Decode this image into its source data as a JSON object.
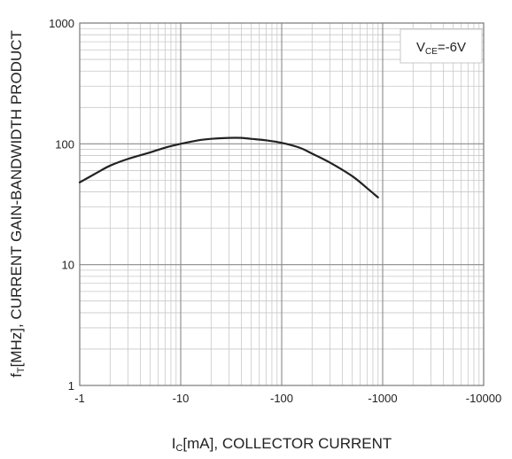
{
  "chart_data": {
    "type": "line",
    "xscale": "log",
    "yscale": "log",
    "xlim": [
      -1,
      -10000
    ],
    "ylim": [
      1,
      1000
    ],
    "x_ticks": [
      "-1",
      "-10",
      "-100",
      "-1000",
      "-10000"
    ],
    "y_ticks": [
      "1",
      "10",
      "100",
      "1000"
    ],
    "xlabel": {
      "prefix": "I",
      "sub": "C",
      "suffix": "[mA], COLLECTOR CURRENT"
    },
    "ylabel": {
      "prefix": "f",
      "sub": "T",
      "suffix": "[MHz], CURRENT GAIN-BANDWIDTH PRODUCT"
    },
    "legend": {
      "position": "top-right",
      "prefix": "V",
      "sub": "CE",
      "suffix": "=-6V"
    },
    "grid": true,
    "series": [
      {
        "color": "#222222",
        "x": [
          -1,
          -1.5,
          -2,
          -3,
          -5,
          -7,
          -10,
          -15,
          -20,
          -30,
          -40,
          -50,
          -70,
          -100,
          -150,
          -200,
          -300,
          -500,
          -700,
          -900
        ],
        "y": [
          48,
          58,
          66,
          75,
          85,
          93,
          100,
          107,
          110,
          112,
          112,
          110,
          107,
          102,
          93,
          83,
          70,
          54,
          43,
          36
        ]
      }
    ]
  }
}
